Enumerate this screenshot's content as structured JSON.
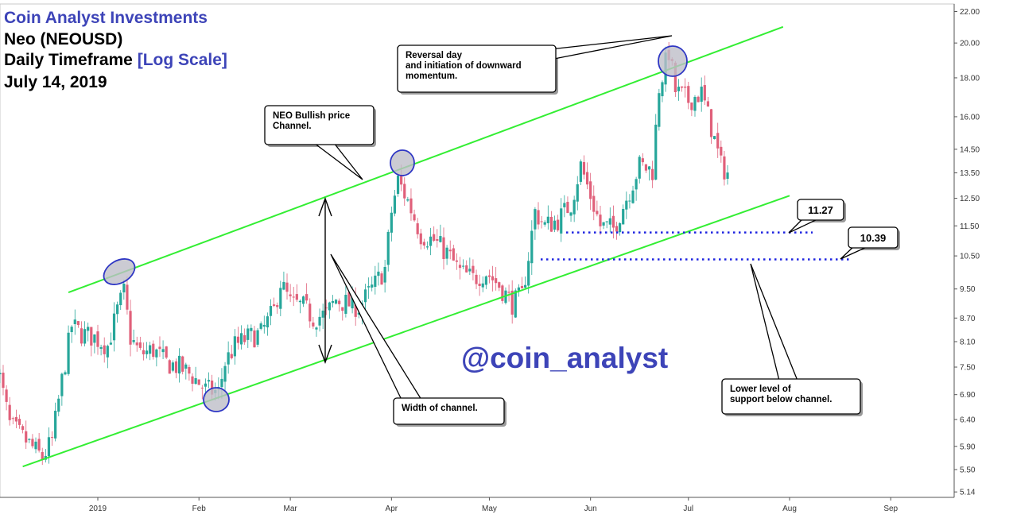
{
  "header": {
    "brand": "Coin Analyst Investments",
    "pair": "Neo (NEOUSD)",
    "timeframe": "Daily Timeframe",
    "scale": "[Log Scale]",
    "date": "July 14, 2019"
  },
  "watermark": "@coin_analyst",
  "chart_data": {
    "type": "candlestick",
    "scale": "log",
    "ylim": [
      5.0,
      22.3
    ],
    "y_ticks": [
      "22.00",
      "20.00",
      "18.00",
      "16.00",
      "14.50",
      "13.50",
      "12.50",
      "11.50",
      "10.50",
      "9.50",
      "8.70",
      "8.10",
      "7.50",
      "6.90",
      "6.40",
      "5.90",
      "5.50",
      "5.14"
    ],
    "x_ticks": [
      "2019",
      "Feb",
      "Mar",
      "Apr",
      "May",
      "Jun",
      "Jul",
      "Aug",
      "Sep"
    ],
    "colors": {
      "up": "#26a69a",
      "down": "#e0607a",
      "channel": "#33ee33",
      "support": "#1f24e0",
      "highlight": "#2e36c4"
    },
    "channel_upper": {
      "start": [
        "2018-12-23",
        9.4
      ],
      "end": [
        "2019-07-30",
        21.0
      ]
    },
    "channel_lower": {
      "start": [
        "2018-12-09",
        5.55
      ],
      "end": [
        "2019-08-01",
        12.6
      ]
    },
    "support_levels": [
      11.27,
      10.39
    ],
    "approx_ohlc_path": [
      [
        "2018-12-01",
        7.6
      ],
      [
        "2018-12-05",
        6.3
      ],
      [
        "2018-12-10",
        6.0
      ],
      [
        "2018-12-15",
        5.7
      ],
      [
        "2018-12-18",
        6.0
      ],
      [
        "2018-12-21",
        7.2
      ],
      [
        "2018-12-24",
        8.5
      ],
      [
        "2018-12-27",
        8.3
      ],
      [
        "2018-12-31",
        8.2
      ],
      [
        "2019-01-04",
        8.0
      ],
      [
        "2019-01-07",
        8.9
      ],
      [
        "2019-01-09",
        9.4
      ],
      [
        "2019-01-11",
        8.2
      ],
      [
        "2019-01-14",
        7.8
      ],
      [
        "2019-01-18",
        7.9
      ],
      [
        "2019-01-22",
        7.6
      ],
      [
        "2019-01-26",
        7.5
      ],
      [
        "2019-01-30",
        7.3
      ],
      [
        "2019-02-03",
        7.0
      ],
      [
        "2019-02-07",
        6.95
      ],
      [
        "2019-02-09",
        7.6
      ],
      [
        "2019-02-12",
        8.0
      ],
      [
        "2019-02-16",
        8.2
      ],
      [
        "2019-02-20",
        8.3
      ],
      [
        "2019-02-24",
        8.9
      ],
      [
        "2019-02-26",
        9.7
      ],
      [
        "2019-03-01",
        9.1
      ],
      [
        "2019-03-05",
        9.0
      ],
      [
        "2019-03-08",
        8.7
      ],
      [
        "2019-03-12",
        8.8
      ],
      [
        "2019-03-15",
        9.2
      ],
      [
        "2019-03-18",
        9.1
      ],
      [
        "2019-03-22",
        9.0
      ],
      [
        "2019-03-26",
        9.5
      ],
      [
        "2019-03-30",
        10.1
      ],
      [
        "2019-04-01",
        12.0
      ],
      [
        "2019-04-03",
        13.2
      ],
      [
        "2019-04-06",
        12.4
      ],
      [
        "2019-04-10",
        11.2
      ],
      [
        "2019-04-14",
        11.0
      ],
      [
        "2019-04-18",
        10.6
      ],
      [
        "2019-04-22",
        10.0
      ],
      [
        "2019-04-26",
        9.8
      ],
      [
        "2019-04-30",
        10.0
      ],
      [
        "2019-05-04",
        9.6
      ],
      [
        "2019-05-08",
        9.1
      ],
      [
        "2019-05-11",
        9.3
      ],
      [
        "2019-05-13",
        10.5
      ],
      [
        "2019-05-15",
        12.0
      ],
      [
        "2019-05-18",
        11.5
      ],
      [
        "2019-05-22",
        11.7
      ],
      [
        "2019-05-26",
        12.3
      ],
      [
        "2019-05-29",
        13.8
      ],
      [
        "2019-06-01",
        12.6
      ],
      [
        "2019-06-04",
        11.5
      ],
      [
        "2019-06-08",
        11.4
      ],
      [
        "2019-06-12",
        12.5
      ],
      [
        "2019-06-16",
        13.8
      ],
      [
        "2019-06-20",
        13.6
      ],
      [
        "2019-06-22",
        17.5
      ],
      [
        "2019-06-25",
        19.5
      ],
      [
        "2019-06-27",
        17.3
      ],
      [
        "2019-07-01",
        16.8
      ],
      [
        "2019-07-05",
        17.2
      ],
      [
        "2019-07-08",
        15.5
      ],
      [
        "2019-07-11",
        13.8
      ],
      [
        "2019-07-13",
        13.5
      ]
    ],
    "annotations": [
      {
        "text": "Reversal day\nand initiation of downward\nmomentum."
      },
      {
        "text": "NEO Bullish price\nChannel."
      },
      {
        "text": "Width of channel."
      },
      {
        "text": "Lower level of\nsupport below channel."
      },
      {
        "text": "11.27"
      },
      {
        "text": "10.39"
      }
    ]
  }
}
